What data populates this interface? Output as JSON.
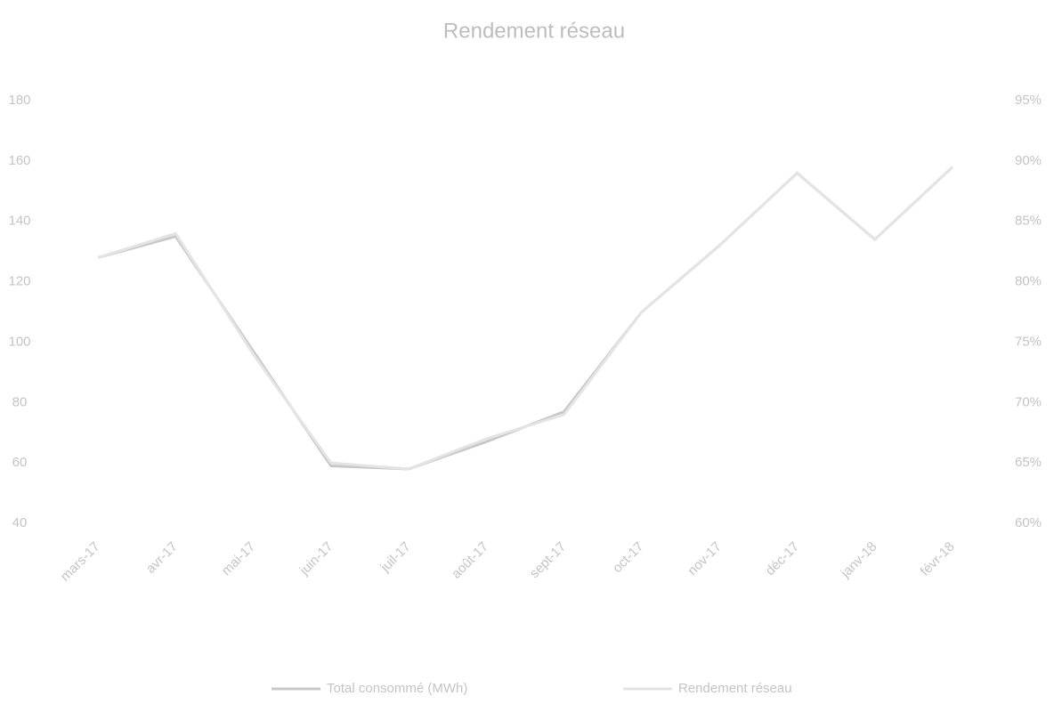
{
  "chart_data": {
    "type": "line",
    "title": "Rendement réseau",
    "categories": [
      "mars-17",
      "avr-17",
      "mai-17",
      "juin-17",
      "juil-17",
      "août-17",
      "sept-17",
      "oct-17",
      "nov-17",
      "déc-17",
      "janv-18",
      "févr-18"
    ],
    "series": [
      {
        "name": "Total consommé (MWh)",
        "color": "#c8c8c8",
        "values": [
          128,
          135,
          97,
          59,
          58,
          67,
          77,
          110,
          132,
          156,
          134,
          158
        ]
      },
      {
        "name": "Rendement réseau",
        "color": "#e4e4e4",
        "axis": "y2",
        "values": [
          82,
          84,
          74,
          65,
          64.5,
          67,
          69,
          77.5,
          83,
          89,
          83.5,
          89.5
        ]
      }
    ],
    "ylim": [
      40,
      180
    ],
    "yticks": [
      40,
      60,
      80,
      100,
      120,
      140,
      160,
      180
    ],
    "y2lim": [
      60,
      95
    ],
    "y2ticks": [
      {
        "value": 60,
        "label": "60%"
      },
      {
        "value": 65,
        "label": "65%"
      },
      {
        "value": 70,
        "label": "70%"
      },
      {
        "value": 75,
        "label": "75%"
      },
      {
        "value": 80,
        "label": "80%"
      },
      {
        "value": 85,
        "label": "85%"
      },
      {
        "value": 90,
        "label": "90%"
      },
      {
        "value": 95,
        "label": "95%"
      }
    ],
    "grid": false,
    "legend": "bottom"
  }
}
